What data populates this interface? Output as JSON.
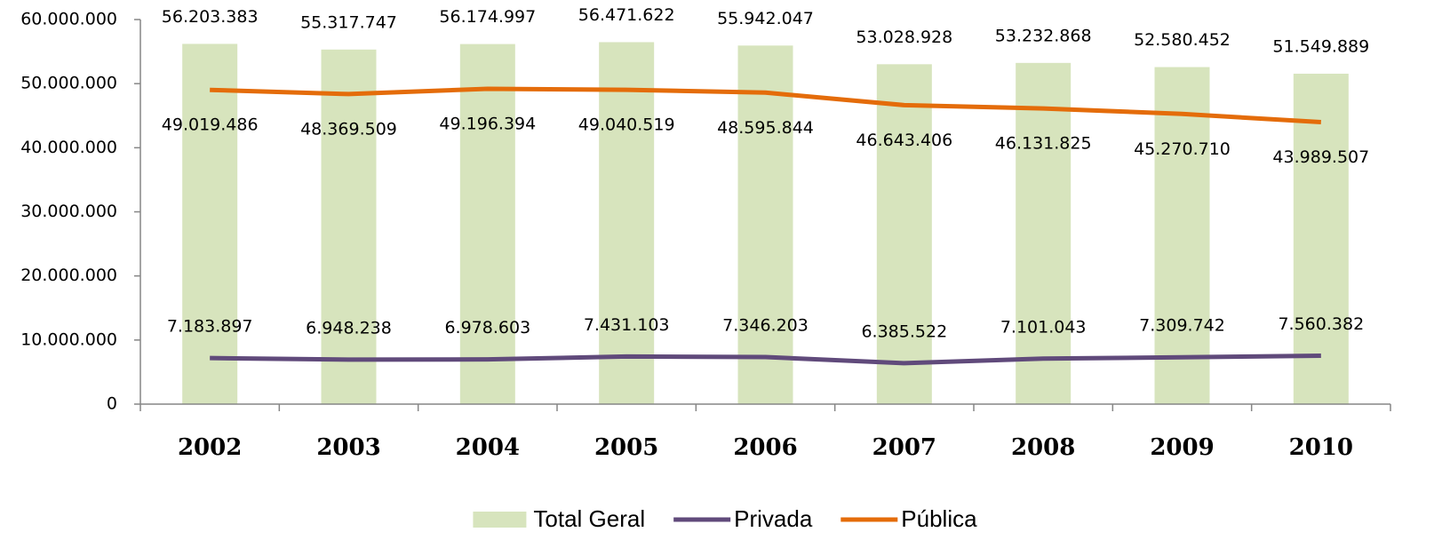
{
  "chart_data": {
    "type": "bar",
    "categories": [
      "2002",
      "2003",
      "2004",
      "2005",
      "2006",
      "2007",
      "2008",
      "2009",
      "2010"
    ],
    "series": [
      {
        "name": "Total Geral",
        "type": "bar",
        "color": "#d7e4bd",
        "values": [
          56203383,
          55317747,
          56174997,
          56471622,
          55942047,
          53028928,
          53232868,
          52580452,
          51549889
        ],
        "value_labels": [
          "56.203.383",
          "55.317.747",
          "56.174.997",
          "56.471.622",
          "55.942.047",
          "53.028.928",
          "53.232.868",
          "52.580.452",
          "51.549.889"
        ]
      },
      {
        "name": "Privada",
        "type": "line",
        "color": "#604a7b",
        "values": [
          7183897,
          6948238,
          6978603,
          7431103,
          7346203,
          6385522,
          7101043,
          7309742,
          7560382
        ],
        "value_labels": [
          "7.183.897",
          "6.948.238",
          "6.978.603",
          "7.431.103",
          "7.346.203",
          "6.385.522",
          "7.101.043",
          "7.309.742",
          "7.560.382"
        ]
      },
      {
        "name": "Pública",
        "type": "line",
        "color": "#e46c0a",
        "values": [
          49019486,
          48369509,
          49196394,
          49040519,
          48595844,
          46643406,
          46131825,
          45270710,
          43989507
        ],
        "value_labels": [
          "49.019.486",
          "48.369.509",
          "49.196.394",
          "49.040.519",
          "48.595.844",
          "46.643.406",
          "46.131.825",
          "45.270.710",
          "43.989.507"
        ]
      }
    ],
    "ylim": [
      0,
      60000000
    ],
    "yticks": [
      0,
      {
        "value": 10000000,
        "label": "10.000.000"
      },
      {
        "value": 20000000,
        "label": "20.000.000"
      },
      {
        "value": 30000000,
        "label": "30.000.000"
      },
      {
        "value": 40000000,
        "label": "40.000.000"
      },
      {
        "value": 50000000,
        "label": "50.000.000"
      },
      {
        "value": 60000000,
        "label": "60.000.000"
      }
    ],
    "grid": false,
    "legend": "bottom"
  }
}
